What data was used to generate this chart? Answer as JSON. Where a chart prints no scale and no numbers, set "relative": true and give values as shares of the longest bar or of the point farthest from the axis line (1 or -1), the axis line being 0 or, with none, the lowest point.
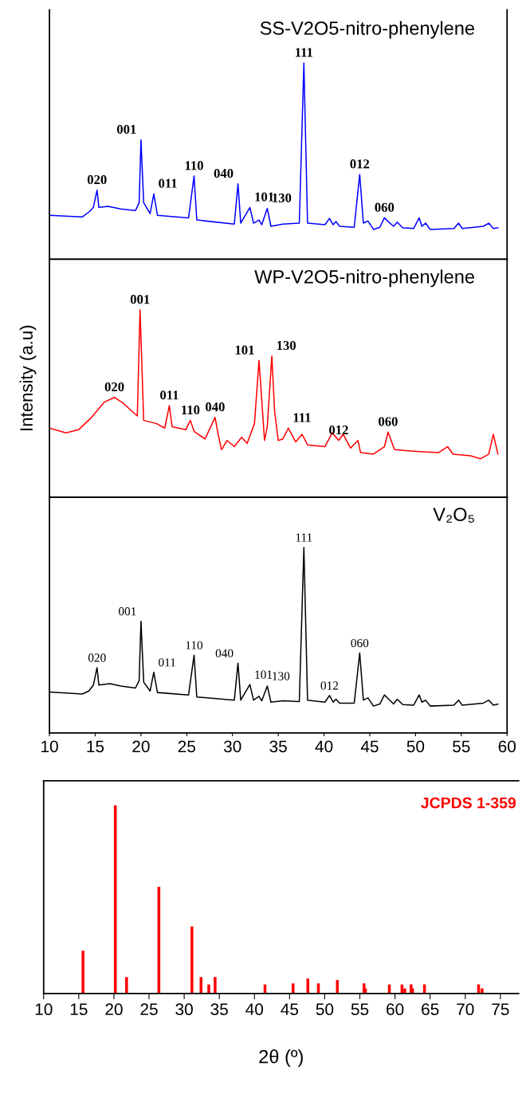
{
  "chart_data": [
    {
      "type": "line",
      "title": "SS-V2O5-nitro-phenylene",
      "relative": true,
      "xlim": [
        10,
        60
      ],
      "tick_labels": false,
      "x": [
        10.0,
        13.6,
        14.3,
        14.8,
        15.2,
        15.4,
        16.4,
        17.8,
        19.4,
        19.8,
        20.0,
        20.3,
        21.0,
        21.4,
        21.8,
        25.2,
        25.8,
        26.1,
        30.2,
        30.6,
        30.9,
        31.9,
        32.3,
        32.9,
        33.2,
        33.8,
        34.2,
        35.5,
        37.3,
        37.8,
        38.2,
        40.1,
        40.6,
        41.0,
        41.3,
        41.7,
        43.3,
        43.9,
        44.3,
        44.8,
        45.4,
        46.1,
        46.6,
        47.0,
        47.6,
        48.0,
        48.6,
        49.8,
        50.4,
        50.7,
        51.1,
        51.6,
        54.2,
        54.7,
        55.1,
        57.4,
        58.0,
        58.5,
        59.0
      ],
      "series": [
        {
          "color": "#0000ff",
          "values": [
            0.224,
            0.216,
            0.24,
            0.264,
            0.352,
            0.264,
            0.269,
            0.256,
            0.248,
            0.288,
            0.608,
            0.288,
            0.232,
            0.333,
            0.224,
            0.211,
            0.424,
            0.2,
            0.179,
            0.384,
            0.184,
            0.264,
            0.184,
            0.2,
            0.176,
            0.259,
            0.168,
            0.179,
            0.184,
            1.0,
            0.184,
            0.176,
            0.208,
            0.176,
            0.192,
            0.168,
            0.163,
            0.432,
            0.184,
            0.195,
            0.152,
            0.163,
            0.211,
            0.192,
            0.168,
            0.189,
            0.16,
            0.157,
            0.211,
            0.168,
            0.184,
            0.152,
            0.157,
            0.184,
            0.157,
            0.168,
            0.184,
            0.157,
            0.16
          ]
        }
      ],
      "annotations": [
        {
          "text": "020",
          "x": 15.2,
          "y": 0.352
        },
        {
          "text": "001",
          "x": 20.0,
          "y": 0.608
        },
        {
          "text": "011",
          "x": 21.4,
          "y": 0.333
        },
        {
          "text": "110",
          "x": 25.8,
          "y": 0.424
        },
        {
          "text": "040",
          "x": 30.6,
          "y": 0.384
        },
        {
          "text": "101",
          "x": 31.9,
          "y": 0.264
        },
        {
          "text": "130",
          "x": 33.8,
          "y": 0.259
        },
        {
          "text": "111",
          "x": 37.8,
          "y": 1.0
        },
        {
          "text": "012",
          "x": 43.9,
          "y": 0.432
        },
        {
          "text": "060",
          "x": 46.6,
          "y": 0.211
        }
      ]
    },
    {
      "type": "line",
      "title": "WP-V2O5-nitro-phenylene",
      "ylabel": "Intensity (a.u)",
      "relative": true,
      "xlim": [
        10,
        60
      ],
      "tick_labels": false,
      "x": [
        10.0,
        11.8,
        13.2,
        14.6,
        16.0,
        17.1,
        18.1,
        19.2,
        19.6,
        19.9,
        20.3,
        21.7,
        22.6,
        23.1,
        23.4,
        24.9,
        25.4,
        25.8,
        27.0,
        28.1,
        28.4,
        28.8,
        29.4,
        30.2,
        31.0,
        31.6,
        32.4,
        32.9,
        33.5,
        33.8,
        34.3,
        34.6,
        35.0,
        35.5,
        36.1,
        36.9,
        37.6,
        38.2,
        40.1,
        40.9,
        41.6,
        42.1,
        42.9,
        43.7,
        44.0,
        45.4,
        46.6,
        47.0,
        47.7,
        48.9,
        50.7,
        52.5,
        53.5,
        54.1,
        56.0,
        57.1,
        58.0,
        58.5,
        59.0
      ],
      "series": [
        {
          "color": "#ff0000",
          "values": [
            0.369,
            0.344,
            0.361,
            0.426,
            0.508,
            0.533,
            0.5,
            0.451,
            0.434,
            1.0,
            0.41,
            0.393,
            0.369,
            0.489,
            0.377,
            0.361,
            0.41,
            0.352,
            0.311,
            0.426,
            0.344,
            0.254,
            0.303,
            0.27,
            0.32,
            0.287,
            0.393,
            0.73,
            0.303,
            0.377,
            0.754,
            0.459,
            0.303,
            0.311,
            0.369,
            0.295,
            0.336,
            0.279,
            0.27,
            0.344,
            0.303,
            0.336,
            0.262,
            0.303,
            0.238,
            0.23,
            0.27,
            0.348,
            0.254,
            0.249,
            0.243,
            0.238,
            0.27,
            0.23,
            0.221,
            0.205,
            0.23,
            0.336,
            0.23
          ]
        }
      ],
      "annotations": [
        {
          "text": "020",
          "x": 17.1,
          "y": 0.533
        },
        {
          "text": "001",
          "x": 19.9,
          "y": 1.0
        },
        {
          "text": "011",
          "x": 23.1,
          "y": 0.489
        },
        {
          "text": "110",
          "x": 25.4,
          "y": 0.41
        },
        {
          "text": "040",
          "x": 28.1,
          "y": 0.426
        },
        {
          "text": "101",
          "x": 32.9,
          "y": 0.73
        },
        {
          "text": "130",
          "x": 34.3,
          "y": 0.754
        },
        {
          "text": "111",
          "x": 36.1,
          "y": 0.369
        },
        {
          "text": "012",
          "x": 41.6,
          "y": 0.303
        },
        {
          "text": "060",
          "x": 47.0,
          "y": 0.348
        }
      ]
    },
    {
      "type": "line",
      "title": "V₂O₅",
      "relative": true,
      "xlim": [
        10,
        60
      ],
      "xticks": [
        10,
        15,
        20,
        25,
        30,
        35,
        40,
        45,
        50,
        55,
        60
      ],
      "tick_labels": "x",
      "x": [
        10.0,
        13.6,
        14.3,
        14.8,
        15.2,
        15.4,
        16.6,
        17.8,
        19.4,
        19.8,
        20.0,
        20.3,
        21.0,
        21.4,
        21.8,
        25.2,
        25.8,
        26.1,
        30.2,
        30.6,
        30.9,
        31.9,
        32.3,
        32.9,
        33.2,
        33.8,
        34.2,
        35.5,
        37.3,
        37.8,
        38.2,
        40.1,
        40.6,
        41.0,
        41.3,
        41.7,
        43.3,
        43.9,
        44.3,
        44.8,
        45.4,
        46.1,
        46.6,
        47.0,
        47.6,
        48.0,
        48.6,
        49.8,
        50.4,
        50.7,
        51.1,
        51.6,
        54.2,
        54.7,
        55.1,
        57.4,
        58.0,
        58.5,
        59.0
      ],
      "series": [
        {
          "color": "#000000",
          "values": [
            0.221,
            0.21,
            0.226,
            0.258,
            0.352,
            0.258,
            0.266,
            0.253,
            0.242,
            0.282,
            0.602,
            0.274,
            0.226,
            0.327,
            0.218,
            0.205,
            0.419,
            0.194,
            0.177,
            0.376,
            0.177,
            0.261,
            0.177,
            0.198,
            0.173,
            0.253,
            0.166,
            0.173,
            0.169,
            1.0,
            0.177,
            0.166,
            0.202,
            0.166,
            0.182,
            0.161,
            0.161,
            0.431,
            0.177,
            0.189,
            0.145,
            0.156,
            0.205,
            0.185,
            0.156,
            0.182,
            0.153,
            0.15,
            0.205,
            0.166,
            0.177,
            0.145,
            0.15,
            0.177,
            0.15,
            0.161,
            0.177,
            0.15,
            0.156
          ]
        }
      ],
      "annotations": [
        {
          "text": "020",
          "x": 15.2,
          "y": 0.352
        },
        {
          "text": "001",
          "x": 20.0,
          "y": 0.602
        },
        {
          "text": "011",
          "x": 21.4,
          "y": 0.327
        },
        {
          "text": "110",
          "x": 25.8,
          "y": 0.419
        },
        {
          "text": "040",
          "x": 30.6,
          "y": 0.376
        },
        {
          "text": "101",
          "x": 31.9,
          "y": 0.261
        },
        {
          "text": "130",
          "x": 33.8,
          "y": 0.253
        },
        {
          "text": "111",
          "x": 37.8,
          "y": 1.0
        },
        {
          "text": "012",
          "x": 40.6,
          "y": 0.202
        },
        {
          "text": "060",
          "x": 43.9,
          "y": 0.431
        }
      ]
    },
    {
      "type": "bar",
      "title": "JCPDS 1-359",
      "xlabel": "2θ (º)",
      "relative": true,
      "xlim": [
        10,
        77.6
      ],
      "xticks": [
        10,
        15,
        20,
        25,
        30,
        35,
        40,
        45,
        50,
        55,
        60,
        65,
        70,
        75
      ],
      "tick_labels": "x",
      "x": [
        15.6,
        20.2,
        21.8,
        26.4,
        31.1,
        32.4,
        33.5,
        34.4,
        41.5,
        45.5,
        47.6,
        49.1,
        51.8,
        55.6,
        55.8,
        59.2,
        61.0,
        61.4,
        62.3,
        62.5,
        64.2,
        71.9,
        72.4
      ],
      "series": [
        {
          "color": "#ff0000",
          "values": [
            0.227,
            1.0,
            0.088,
            0.567,
            0.356,
            0.088,
            0.048,
            0.088,
            0.048,
            0.054,
            0.08,
            0.054,
            0.072,
            0.054,
            0.027,
            0.048,
            0.048,
            0.027,
            0.048,
            0.027,
            0.048,
            0.048,
            0.027
          ]
        }
      ]
    }
  ]
}
